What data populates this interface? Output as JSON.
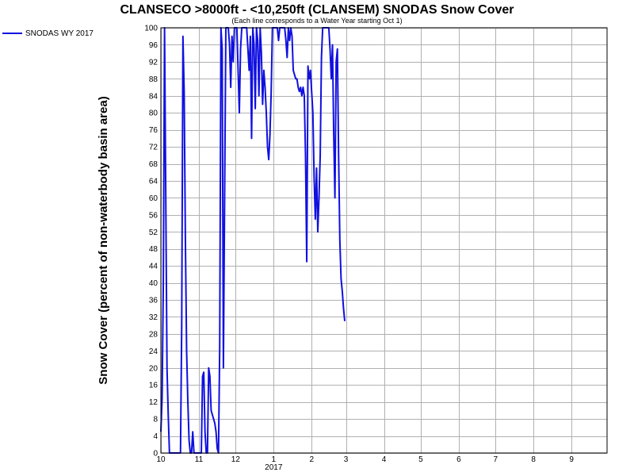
{
  "chart_data": {
    "type": "line",
    "title": "CLANSECO >8000ft - <10,250ft (CLANSEM) SNODAS Snow Cover",
    "subtitle": "(Each line corresponds to a Water Year starting Oct 1)",
    "xlabel": "",
    "ylabel": "Snow Cover (percent of non-waterbody basin area)",
    "ylim": [
      0,
      100
    ],
    "y_ticks": [
      0,
      4,
      8,
      12,
      16,
      20,
      24,
      28,
      32,
      36,
      40,
      44,
      48,
      52,
      56,
      60,
      64,
      68,
      72,
      76,
      80,
      84,
      88,
      92,
      96,
      100
    ],
    "xlim": [
      "2016-10-01",
      "2017-09-30"
    ],
    "x_ticks": [
      {
        "date": "2016-10-01",
        "label": "10"
      },
      {
        "date": "2016-11-01",
        "label": "11"
      },
      {
        "date": "2016-12-01",
        "label": "12"
      },
      {
        "date": "2017-01-01",
        "label": "1"
      },
      {
        "date": "2017-02-01",
        "label": "2"
      },
      {
        "date": "2017-03-01",
        "label": "3"
      },
      {
        "date": "2017-04-01",
        "label": "4"
      },
      {
        "date": "2017-05-01",
        "label": "5"
      },
      {
        "date": "2017-06-01",
        "label": "6"
      },
      {
        "date": "2017-07-01",
        "label": "7"
      },
      {
        "date": "2017-08-01",
        "label": "8"
      },
      {
        "date": "2017-09-01",
        "label": "9"
      }
    ],
    "year_label": {
      "date": "2017-01-01",
      "label": "2017"
    },
    "grid": true,
    "legend": "top-left",
    "series": [
      {
        "name": "SNODAS WY 2017",
        "color": "#1010e0",
        "points": [
          [
            "2016-10-01",
            5
          ],
          [
            "2016-10-02",
            13
          ],
          [
            "2016-10-03",
            40
          ],
          [
            "2016-10-04",
            100
          ],
          [
            "2016-10-05",
            60
          ],
          [
            "2016-10-06",
            20
          ],
          [
            "2016-10-07",
            9
          ],
          [
            "2016-10-08",
            0
          ],
          [
            "2016-10-15",
            0
          ],
          [
            "2016-10-17",
            0
          ],
          [
            "2016-10-18",
            30
          ],
          [
            "2016-10-19",
            98
          ],
          [
            "2016-10-20",
            85
          ],
          [
            "2016-10-21",
            50
          ],
          [
            "2016-10-22",
            24
          ],
          [
            "2016-10-23",
            12
          ],
          [
            "2016-10-24",
            3
          ],
          [
            "2016-10-25",
            0
          ],
          [
            "2016-10-26",
            0
          ],
          [
            "2016-10-27",
            5
          ],
          [
            "2016-10-28",
            0
          ],
          [
            "2016-11-03",
            0
          ],
          [
            "2016-11-04",
            18
          ],
          [
            "2016-11-05",
            19
          ],
          [
            "2016-11-06",
            5
          ],
          [
            "2016-11-07",
            0
          ],
          [
            "2016-11-08",
            0
          ],
          [
            "2016-11-09",
            20
          ],
          [
            "2016-11-10",
            18
          ],
          [
            "2016-11-11",
            10
          ],
          [
            "2016-11-12",
            9
          ],
          [
            "2016-11-14",
            7
          ],
          [
            "2016-11-15",
            5
          ],
          [
            "2016-11-16",
            1
          ],
          [
            "2016-11-17",
            0
          ],
          [
            "2016-11-18",
            25
          ],
          [
            "2016-11-19",
            100
          ],
          [
            "2016-11-20",
            95
          ],
          [
            "2016-11-21",
            20
          ],
          [
            "2016-11-22",
            60
          ],
          [
            "2016-11-23",
            100
          ],
          [
            "2016-11-25",
            100
          ],
          [
            "2016-11-26",
            96
          ],
          [
            "2016-11-27",
            86
          ],
          [
            "2016-11-28",
            98
          ],
          [
            "2016-11-29",
            92
          ],
          [
            "2016-11-30",
            100
          ],
          [
            "2016-12-02",
            100
          ],
          [
            "2016-12-03",
            90
          ],
          [
            "2016-12-04",
            80
          ],
          [
            "2016-12-05",
            95
          ],
          [
            "2016-12-06",
            100
          ],
          [
            "2016-12-10",
            100
          ],
          [
            "2016-12-11",
            95
          ],
          [
            "2016-12-12",
            90
          ],
          [
            "2016-12-13",
            98
          ],
          [
            "2016-12-14",
            74
          ],
          [
            "2016-12-15",
            100
          ],
          [
            "2016-12-16",
            96
          ],
          [
            "2016-12-17",
            81
          ],
          [
            "2016-12-18",
            100
          ],
          [
            "2016-12-19",
            97
          ],
          [
            "2016-12-20",
            84
          ],
          [
            "2016-12-21",
            100
          ],
          [
            "2016-12-22",
            94
          ],
          [
            "2016-12-23",
            82
          ],
          [
            "2016-12-24",
            90
          ],
          [
            "2016-12-25",
            86
          ],
          [
            "2016-12-26",
            80
          ],
          [
            "2016-12-27",
            72
          ],
          [
            "2016-12-28",
            69
          ],
          [
            "2016-12-29",
            75
          ],
          [
            "2016-12-30",
            85
          ],
          [
            "2016-12-31",
            100
          ],
          [
            "2017-01-04",
            100
          ],
          [
            "2017-01-05",
            97
          ],
          [
            "2017-01-06",
            100
          ],
          [
            "2017-01-10",
            100
          ],
          [
            "2017-01-11",
            97
          ],
          [
            "2017-01-12",
            93
          ],
          [
            "2017-01-13",
            100
          ],
          [
            "2017-01-14",
            97
          ],
          [
            "2017-01-15",
            100
          ],
          [
            "2017-01-16",
            98
          ],
          [
            "2017-01-17",
            90
          ],
          [
            "2017-01-19",
            88
          ],
          [
            "2017-01-20",
            88
          ],
          [
            "2017-01-21",
            86
          ],
          [
            "2017-01-22",
            85
          ],
          [
            "2017-01-23",
            86
          ],
          [
            "2017-01-24",
            84
          ],
          [
            "2017-01-25",
            86
          ],
          [
            "2017-01-26",
            84
          ],
          [
            "2017-01-27",
            70
          ],
          [
            "2017-01-28",
            45
          ],
          [
            "2017-01-29",
            91
          ],
          [
            "2017-01-30",
            88
          ],
          [
            "2017-01-31",
            90
          ],
          [
            "2017-02-02",
            80
          ],
          [
            "2017-02-03",
            65
          ],
          [
            "2017-02-04",
            55
          ],
          [
            "2017-02-05",
            67
          ],
          [
            "2017-02-06",
            52
          ],
          [
            "2017-02-07",
            60
          ],
          [
            "2017-02-08",
            70
          ],
          [
            "2017-02-09",
            93
          ],
          [
            "2017-02-10",
            100
          ],
          [
            "2017-02-15",
            100
          ],
          [
            "2017-02-16",
            95
          ],
          [
            "2017-02-17",
            88
          ],
          [
            "2017-02-18",
            96
          ],
          [
            "2017-02-19",
            75
          ],
          [
            "2017-02-20",
            60
          ],
          [
            "2017-02-21",
            92
          ],
          [
            "2017-02-22",
            95
          ],
          [
            "2017-02-23",
            70
          ],
          [
            "2017-02-24",
            50
          ],
          [
            "2017-02-25",
            41
          ],
          [
            "2017-02-26",
            38
          ],
          [
            "2017-02-27",
            34
          ],
          [
            "2017-02-28",
            31
          ]
        ]
      }
    ]
  }
}
